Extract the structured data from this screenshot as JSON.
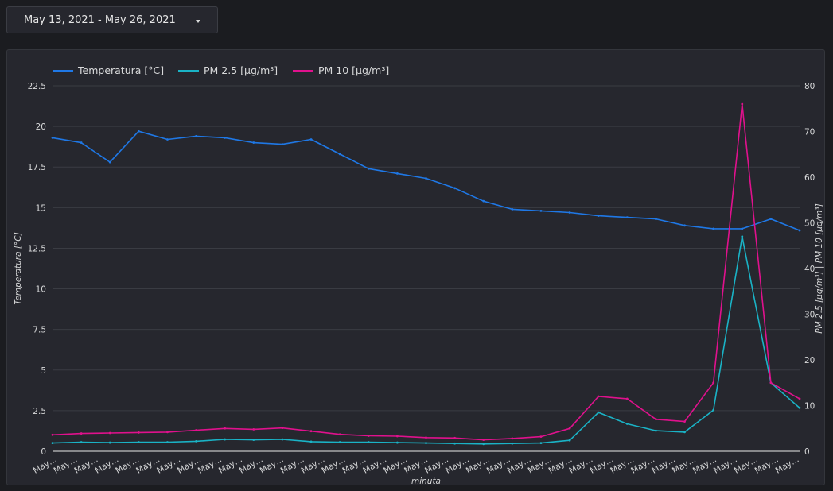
{
  "date_range": {
    "label": "May 13, 2021 - May 26, 2021",
    "icon": "caret-down-icon"
  },
  "chart_data": {
    "type": "line",
    "legend_position": "top-left",
    "grid": true,
    "xlabel": "minuta",
    "ylabel_left": "Temperatura [°C]",
    "ylabel_right": "PM 2.5 [µg/m³] | PM 10 [µg/m³]",
    "ylim_left": [
      0,
      22.5
    ],
    "ylim_right": [
      0,
      80
    ],
    "y_ticks_left": [
      "0",
      "2.5",
      "5",
      "7.5",
      "10",
      "12.5",
      "15",
      "17.5",
      "20",
      "22.5"
    ],
    "y_ticks_right": [
      "0",
      "10",
      "20",
      "30",
      "40",
      "50",
      "60",
      "70",
      "80"
    ],
    "x_tick_labels": [
      "May…",
      "May…",
      "May…",
      "May…",
      "May…",
      "May…",
      "May…",
      "May…",
      "May…",
      "May…",
      "May…",
      "May…",
      "May…",
      "May…",
      "May…",
      "May…",
      "May…",
      "May…",
      "May…",
      "May…",
      "May…",
      "May…",
      "May…",
      "May…",
      "May…",
      "May…",
      "May…",
      "May…",
      "May…",
      "May…",
      "May…",
      "May…",
      "May…",
      "May…",
      "May…",
      "May…",
      "May…"
    ],
    "x": [
      0,
      0.5,
      1,
      1.5,
      2,
      2.5,
      3,
      3.5,
      4,
      4.5,
      5,
      5.5,
      6,
      6.5,
      7,
      7.5,
      8,
      8.5,
      9,
      9.5,
      10,
      10.5,
      11,
      11.5,
      12,
      12.5,
      13
    ],
    "series": [
      {
        "name": "Temperatura [°C]",
        "axis": "left",
        "color": "#1f78e6",
        "values": [
          19.3,
          19.0,
          17.8,
          19.7,
          19.2,
          19.4,
          19.3,
          19.0,
          18.9,
          19.2,
          18.3,
          17.4,
          17.1,
          16.8,
          16.2,
          15.4,
          14.9,
          14.8,
          14.7,
          14.5,
          14.4,
          14.3,
          13.9,
          13.7,
          13.7,
          14.3,
          13.6
        ]
      },
      {
        "name": "PM 2.5 [µg/m³]",
        "axis": "right",
        "color": "#1ab3c6",
        "values": [
          1.8,
          2.0,
          1.9,
          2.0,
          2.0,
          2.2,
          2.6,
          2.5,
          2.6,
          2.1,
          2.0,
          2.0,
          1.9,
          1.8,
          1.7,
          1.6,
          1.7,
          1.8,
          2.4,
          8.5,
          6.0,
          4.5,
          4.2,
          9.0,
          47.0,
          15.0,
          9.5
        ]
      },
      {
        "name": "PM 10 [µg/m³]",
        "axis": "right",
        "color": "#e0118d",
        "values": [
          3.6,
          3.9,
          4.0,
          4.1,
          4.2,
          4.6,
          5.0,
          4.8,
          5.1,
          4.4,
          3.7,
          3.4,
          3.3,
          3.0,
          2.9,
          2.5,
          2.8,
          3.2,
          5.0,
          12.0,
          11.5,
          7.0,
          6.5,
          15.0,
          76.0,
          15.0,
          11.5
        ]
      }
    ]
  }
}
